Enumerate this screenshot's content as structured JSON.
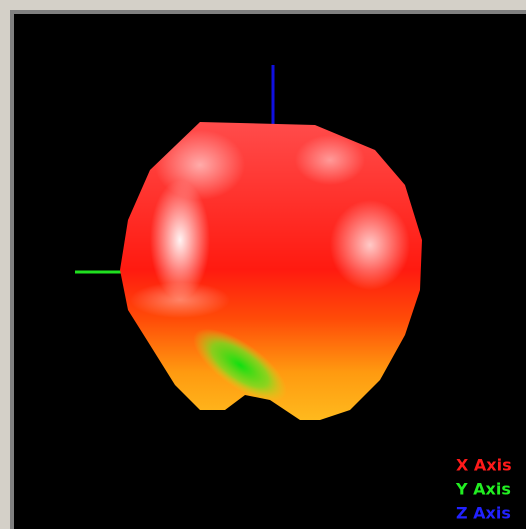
{
  "legend": {
    "items": [
      {
        "label": "X Axis",
        "color": "#ff1a1a"
      },
      {
        "label": "Y Axis",
        "color": "#22ee22"
      },
      {
        "label": "Z Axis",
        "color": "#2222ff"
      }
    ]
  }
}
